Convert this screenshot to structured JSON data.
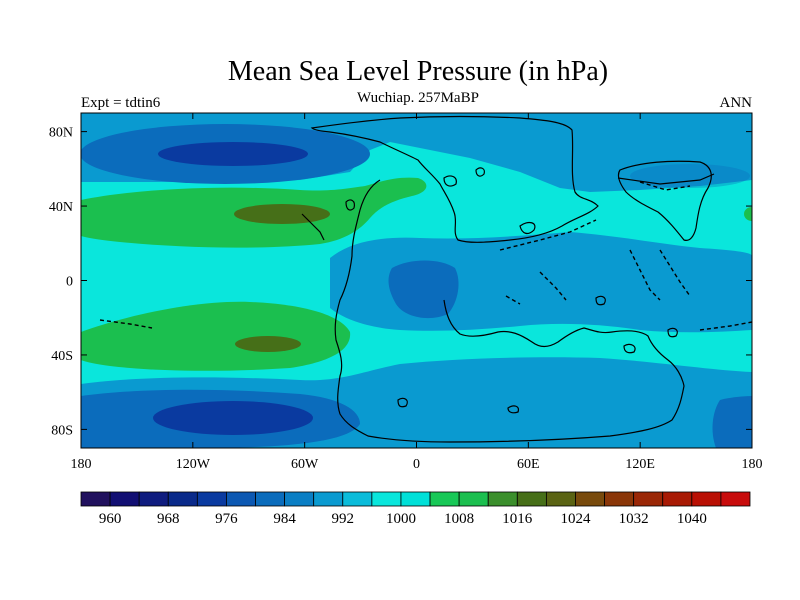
{
  "title": "Mean Sea Level Pressure (in hPa)",
  "subtitle": "Wuchiap. 257MaBP",
  "left_label": "Expt = tdtin6",
  "right_label": "ANN",
  "x_ticks": [
    "180",
    "120W",
    "60W",
    "0",
    "60E",
    "120E",
    "180"
  ],
  "y_ticks": [
    "80N",
    "40N",
    "0",
    "40S",
    "80S"
  ],
  "colorbar": {
    "colors": [
      "#21115e",
      "#120f73",
      "#0f1c7f",
      "#0a2a8a",
      "#0a3aa0",
      "#0c58b2",
      "#0b6cbc",
      "#0a7ec4",
      "#0a9ad0",
      "#0bbcda",
      "#0ae6dc",
      "#00e0d8",
      "#18c857",
      "#1bbf4f",
      "#3b8f2c",
      "#466f18",
      "#5a6313",
      "#784a0c",
      "#8a3608",
      "#9a2706",
      "#a81a04",
      "#b91004",
      "#c80c0c"
    ],
    "labels": [
      "960",
      "968",
      "976",
      "984",
      "992",
      "1000",
      "1008",
      "1016",
      "1024",
      "1032",
      "1040"
    ]
  },
  "map_colors": {
    "base": "#0ae6dc",
    "low_outer": "#0a9ad0",
    "low_mid": "#0b6cbc",
    "low_core": "#0a3aa0",
    "high_outer": "#1bbf4f",
    "high_core": "#466f18"
  },
  "chart_data": {
    "type": "heatmap",
    "title": "Mean Sea Level Pressure (in hPa)",
    "subtitle": "Wuchiap. 257MaBP",
    "units": "hPa",
    "x_range": [
      -180,
      180
    ],
    "y_range": [
      -90,
      90
    ],
    "x_tick_values": [
      -180,
      -120,
      -60,
      0,
      60,
      120,
      180
    ],
    "y_tick_values": [
      80,
      40,
      0,
      -40,
      -80
    ],
    "levels": [
      960,
      964,
      968,
      972,
      976,
      980,
      984,
      988,
      992,
      996,
      1000,
      1004,
      1008,
      1012,
      1016,
      1020,
      1024,
      1028,
      1032,
      1036,
      1040,
      1044
    ],
    "features": [
      {
        "name": "northern subpolar low band",
        "center_lat": 67,
        "min_hpa": 980
      },
      {
        "name": "northern subtropical high",
        "center_lat": 37,
        "max_hpa": 1014
      },
      {
        "name": "southern subtropical high",
        "center_lat": -35,
        "max_hpa": 1014
      },
      {
        "name": "southern subpolar low band",
        "center_lat": -70,
        "min_hpa": 980
      }
    ]
  }
}
